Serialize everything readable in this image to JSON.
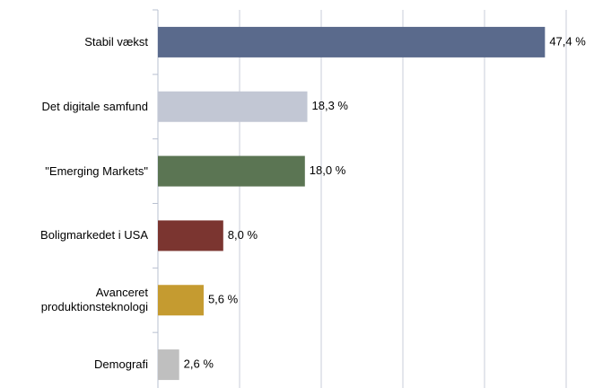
{
  "chart_data": {
    "type": "bar",
    "orientation": "horizontal",
    "categories": [
      "Stabil vækst",
      "Det digitale samfund",
      "\"Emerging Markets\"",
      "Boligmarkedet i USA",
      "Avanceret produktionsteknologi",
      "Demografi"
    ],
    "values": [
      47.4,
      18.3,
      18.0,
      8.0,
      5.6,
      2.6
    ],
    "value_labels": [
      "47,4 %",
      "18,3 %",
      "18,0 %",
      "8,0 %",
      "5,6 %",
      "2,6 %"
    ],
    "colors": [
      "#5a6a8c",
      "#c2c7d4",
      "#5b7553",
      "#7b3530",
      "#c59b30",
      "#bfbfbf"
    ],
    "xlim": [
      0,
      50
    ],
    "xticks": [
      0,
      10,
      20,
      30,
      40,
      50
    ],
    "grid": true
  }
}
